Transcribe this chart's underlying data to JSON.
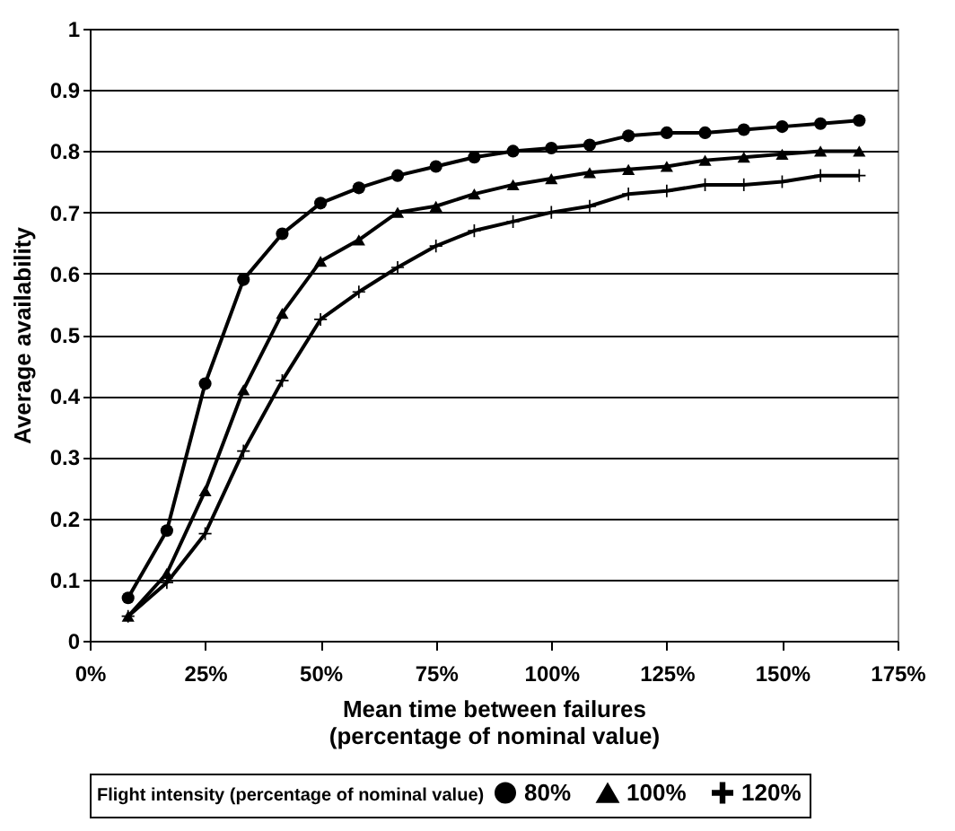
{
  "chart_data": {
    "type": "line",
    "xlabel": "Mean time between failures\n(percentage of nominal value)",
    "ylabel": "Average availability",
    "legend_title": "Flight intensity (percentage of nominal value)",
    "legend": "bottom right",
    "grid": "y",
    "line_style": "solid",
    "x": [
      8.3,
      16.7,
      25,
      33.3,
      41.7,
      50,
      58.3,
      66.7,
      75,
      83.3,
      91.7,
      100,
      108.3,
      116.7,
      125,
      133.3,
      141.7,
      150,
      158.3,
      166.7
    ],
    "xlim": [
      0,
      175
    ],
    "xticks": [
      {
        "value": 0,
        "label": "0%"
      },
      {
        "value": 25,
        "label": "25%"
      },
      {
        "value": 50,
        "label": "50%"
      },
      {
        "value": 75,
        "label": "75%"
      },
      {
        "value": 100,
        "label": "100%"
      },
      {
        "value": 125,
        "label": "125%"
      },
      {
        "value": 150,
        "label": "150%"
      },
      {
        "value": 175,
        "label": "175%"
      }
    ],
    "ylim": [
      0,
      1
    ],
    "yticks": [
      0,
      0.1,
      0.2,
      0.3,
      0.4,
      0.5,
      0.6,
      0.7,
      0.8,
      0.9,
      1
    ],
    "series": [
      {
        "name": "80%",
        "color": "#000000",
        "marker": "circle",
        "values": [
          0.07,
          0.18,
          0.42,
          0.59,
          0.665,
          0.715,
          0.74,
          0.76,
          0.775,
          0.79,
          0.8,
          0.805,
          0.81,
          0.825,
          0.83,
          0.83,
          0.835,
          0.84,
          0.845,
          0.85
        ]
      },
      {
        "name": "100%",
        "color": "#000000",
        "marker": "triangle",
        "values": [
          0.04,
          0.11,
          0.245,
          0.41,
          0.535,
          0.62,
          0.655,
          0.7,
          0.71,
          0.73,
          0.745,
          0.755,
          0.765,
          0.77,
          0.775,
          0.785,
          0.79,
          0.795,
          0.8,
          0.8
        ]
      },
      {
        "name": "120%",
        "color": "#000000",
        "marker": "cross",
        "values": [
          0.04,
          0.095,
          0.175,
          0.31,
          0.425,
          0.525,
          0.57,
          0.61,
          0.645,
          0.67,
          0.685,
          0.7,
          0.71,
          0.73,
          0.735,
          0.745,
          0.745,
          0.75,
          0.76,
          0.76
        ]
      }
    ]
  }
}
